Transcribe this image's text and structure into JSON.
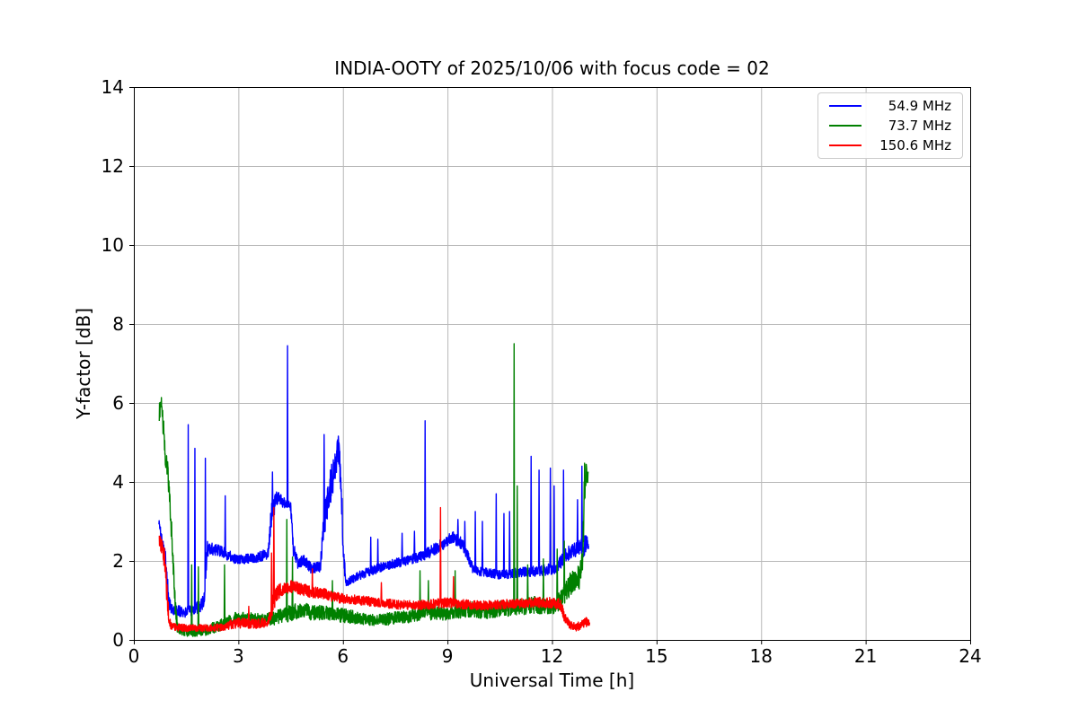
{
  "chart_data": {
    "type": "line",
    "title": "INDIA-OOTY of 2025/10/06 with focus code = 02",
    "xlabel": "Universal Time [h]",
    "ylabel": "Y-factor [dB]",
    "xlim": [
      0,
      24
    ],
    "ylim": [
      0,
      14
    ],
    "xticks": [
      "0",
      "3",
      "6",
      "9",
      "12",
      "15",
      "18",
      "21",
      "24"
    ],
    "yticks": [
      "0",
      "2",
      "4",
      "6",
      "8",
      "10",
      "12",
      "14"
    ],
    "grid": true,
    "grid_color": "#b8b8b8",
    "axis_color": "#000000",
    "legend_position": "upper right",
    "sample_step_h": 0.006,
    "series": [
      {
        "name": "54.9 MHz",
        "color": "#0000ff",
        "keypoints": [
          [
            0.72,
            3.0,
            0.1
          ],
          [
            0.78,
            2.62,
            0.15
          ],
          [
            0.86,
            2.35,
            0.15
          ],
          [
            0.93,
            1.9,
            0.25
          ],
          [
            1.0,
            0.95,
            0.2
          ],
          [
            1.08,
            0.78,
            0.15
          ],
          [
            1.3,
            0.72,
            0.15
          ],
          [
            1.5,
            0.7,
            0.14
          ],
          [
            1.7,
            0.78,
            0.15
          ],
          [
            1.9,
            0.85,
            0.16
          ],
          [
            2.02,
            1.0,
            0.2
          ],
          [
            2.1,
            2.3,
            0.25
          ],
          [
            2.3,
            2.3,
            0.15
          ],
          [
            2.6,
            2.2,
            0.15
          ],
          [
            2.9,
            2.05,
            0.12
          ],
          [
            3.2,
            2.05,
            0.12
          ],
          [
            3.6,
            2.1,
            0.13
          ],
          [
            3.85,
            2.2,
            0.15
          ],
          [
            3.95,
            3.2,
            0.35
          ],
          [
            4.1,
            3.6,
            0.18
          ],
          [
            4.3,
            3.5,
            0.15
          ],
          [
            4.5,
            3.35,
            0.13
          ],
          [
            4.58,
            2.3,
            0.2
          ],
          [
            4.7,
            1.95,
            0.15
          ],
          [
            4.9,
            2.0,
            0.15
          ],
          [
            5.1,
            1.8,
            0.13
          ],
          [
            5.35,
            1.85,
            0.15
          ],
          [
            5.45,
            2.9,
            0.4
          ],
          [
            5.6,
            3.7,
            0.45
          ],
          [
            5.75,
            4.3,
            0.5
          ],
          [
            5.87,
            4.9,
            0.4
          ],
          [
            5.95,
            3.9,
            0.45
          ],
          [
            6.02,
            2.0,
            0.3
          ],
          [
            6.1,
            1.45,
            0.1
          ],
          [
            6.4,
            1.6,
            0.11
          ],
          [
            6.8,
            1.75,
            0.12
          ],
          [
            7.3,
            1.9,
            0.12
          ],
          [
            7.8,
            2.0,
            0.12
          ],
          [
            8.2,
            2.1,
            0.13
          ],
          [
            8.55,
            2.25,
            0.15
          ],
          [
            8.9,
            2.45,
            0.15
          ],
          [
            9.15,
            2.6,
            0.15
          ],
          [
            9.4,
            2.45,
            0.15
          ],
          [
            9.6,
            2.1,
            0.15
          ],
          [
            9.75,
            1.75,
            0.12
          ],
          [
            10.1,
            1.7,
            0.12
          ],
          [
            10.6,
            1.65,
            0.12
          ],
          [
            11.1,
            1.7,
            0.13
          ],
          [
            11.6,
            1.75,
            0.14
          ],
          [
            12.1,
            1.8,
            0.15
          ],
          [
            12.45,
            2.2,
            0.2
          ],
          [
            12.7,
            2.3,
            0.2
          ],
          [
            12.9,
            2.35,
            0.25
          ],
          [
            13.0,
            2.5,
            0.25
          ],
          [
            13.05,
            2.4,
            0.15
          ]
        ],
        "spikes": [
          [
            1.56,
            5.45
          ],
          [
            1.75,
            4.85
          ],
          [
            2.05,
            4.6
          ],
          [
            2.62,
            3.65
          ],
          [
            3.98,
            4.25
          ],
          [
            4.41,
            7.45
          ],
          [
            5.46,
            5.2
          ],
          [
            6.8,
            2.6
          ],
          [
            7.0,
            2.55
          ],
          [
            7.7,
            2.7
          ],
          [
            8.05,
            2.75
          ],
          [
            8.36,
            5.55
          ],
          [
            9.3,
            3.05
          ],
          [
            9.5,
            3.0
          ],
          [
            9.8,
            3.25
          ],
          [
            10.0,
            3.0
          ],
          [
            10.4,
            3.7
          ],
          [
            10.62,
            3.2
          ],
          [
            10.78,
            3.25
          ],
          [
            11.4,
            4.65
          ],
          [
            11.63,
            4.3
          ],
          [
            11.95,
            4.35
          ],
          [
            12.06,
            3.9
          ],
          [
            12.33,
            4.3
          ],
          [
            12.73,
            3.55
          ],
          [
            12.86,
            4.4
          ]
        ]
      },
      {
        "name": "73.7 MHz",
        "color": "#008000",
        "keypoints": [
          [
            0.73,
            5.8,
            0.3
          ],
          [
            0.78,
            6.05,
            0.18
          ],
          [
            0.84,
            5.5,
            0.3
          ],
          [
            0.9,
            4.7,
            0.3
          ],
          [
            0.97,
            4.35,
            0.25
          ],
          [
            1.03,
            3.5,
            0.35
          ],
          [
            1.1,
            2.4,
            0.35
          ],
          [
            1.17,
            1.0,
            0.35
          ],
          [
            1.25,
            0.3,
            0.15
          ],
          [
            1.5,
            0.22,
            0.13
          ],
          [
            1.8,
            0.2,
            0.12
          ],
          [
            2.1,
            0.25,
            0.13
          ],
          [
            2.5,
            0.38,
            0.15
          ],
          [
            2.9,
            0.55,
            0.15
          ],
          [
            3.3,
            0.55,
            0.15
          ],
          [
            3.7,
            0.5,
            0.15
          ],
          [
            4.0,
            0.55,
            0.18
          ],
          [
            4.4,
            0.65,
            0.2
          ],
          [
            4.75,
            0.75,
            0.2
          ],
          [
            5.1,
            0.7,
            0.2
          ],
          [
            5.5,
            0.68,
            0.18
          ],
          [
            6.0,
            0.62,
            0.18
          ],
          [
            6.5,
            0.55,
            0.16
          ],
          [
            7.0,
            0.5,
            0.15
          ],
          [
            7.5,
            0.55,
            0.16
          ],
          [
            8.0,
            0.62,
            0.18
          ],
          [
            8.4,
            0.72,
            0.2
          ],
          [
            8.8,
            0.65,
            0.18
          ],
          [
            9.2,
            0.7,
            0.18
          ],
          [
            9.6,
            0.78,
            0.2
          ],
          [
            10.0,
            0.72,
            0.2
          ],
          [
            10.5,
            0.78,
            0.2
          ],
          [
            11.0,
            0.82,
            0.2
          ],
          [
            11.5,
            0.88,
            0.22
          ],
          [
            12.0,
            0.82,
            0.2
          ],
          [
            12.3,
            1.05,
            0.25
          ],
          [
            12.55,
            1.45,
            0.3
          ],
          [
            12.8,
            1.6,
            0.3
          ],
          [
            12.88,
            2.0,
            0.4
          ],
          [
            12.93,
            3.9,
            0.6
          ],
          [
            12.99,
            4.3,
            0.22
          ],
          [
            13.04,
            3.4,
            0.85
          ]
        ],
        "spikes": [
          [
            1.66,
            1.9
          ],
          [
            1.85,
            1.85
          ],
          [
            2.6,
            1.9
          ],
          [
            4.39,
            3.05
          ],
          [
            4.55,
            2.1
          ],
          [
            5.7,
            1.5
          ],
          [
            8.21,
            1.75
          ],
          [
            8.45,
            1.5
          ],
          [
            9.22,
            1.75
          ],
          [
            10.91,
            7.5
          ],
          [
            11.0,
            3.9
          ],
          [
            11.3,
            1.9
          ],
          [
            11.75,
            2.05
          ],
          [
            12.15,
            2.3
          ],
          [
            12.35,
            2.5
          ]
        ]
      },
      {
        "name": "150.6 MHz",
        "color": "#ff0000",
        "keypoints": [
          [
            0.73,
            2.5,
            0.15
          ],
          [
            0.8,
            2.35,
            0.2
          ],
          [
            0.88,
            2.1,
            0.3
          ],
          [
            0.95,
            1.2,
            0.35
          ],
          [
            1.02,
            0.45,
            0.15
          ],
          [
            1.1,
            0.33,
            0.1
          ],
          [
            1.5,
            0.3,
            0.09
          ],
          [
            2.0,
            0.3,
            0.09
          ],
          [
            2.5,
            0.33,
            0.1
          ],
          [
            3.0,
            0.43,
            0.13
          ],
          [
            3.5,
            0.4,
            0.12
          ],
          [
            3.85,
            0.45,
            0.13
          ],
          [
            3.97,
            0.9,
            0.3
          ],
          [
            4.1,
            1.2,
            0.2
          ],
          [
            4.3,
            1.3,
            0.16
          ],
          [
            4.55,
            1.35,
            0.16
          ],
          [
            4.8,
            1.28,
            0.15
          ],
          [
            5.1,
            1.22,
            0.15
          ],
          [
            5.4,
            1.18,
            0.14
          ],
          [
            5.7,
            1.1,
            0.13
          ],
          [
            6.0,
            1.05,
            0.13
          ],
          [
            6.5,
            1.0,
            0.12
          ],
          [
            7.0,
            0.95,
            0.12
          ],
          [
            7.5,
            0.9,
            0.12
          ],
          [
            8.0,
            0.87,
            0.12
          ],
          [
            8.5,
            0.9,
            0.12
          ],
          [
            9.0,
            0.95,
            0.13
          ],
          [
            9.5,
            0.9,
            0.12
          ],
          [
            10.0,
            0.87,
            0.12
          ],
          [
            10.5,
            0.9,
            0.12
          ],
          [
            11.0,
            0.92,
            0.12
          ],
          [
            11.5,
            0.95,
            0.13
          ],
          [
            12.0,
            0.95,
            0.14
          ],
          [
            12.25,
            0.9,
            0.15
          ],
          [
            12.35,
            0.6,
            0.13
          ],
          [
            12.5,
            0.38,
            0.1
          ],
          [
            12.7,
            0.32,
            0.1
          ],
          [
            12.9,
            0.42,
            0.13
          ],
          [
            13.0,
            0.48,
            0.15
          ],
          [
            13.08,
            0.35,
            0.1
          ]
        ],
        "spikes": [
          [
            3.3,
            0.85
          ],
          [
            3.95,
            2.2
          ],
          [
            4.02,
            3.35
          ],
          [
            5.12,
            1.8
          ],
          [
            7.1,
            1.45
          ],
          [
            8.8,
            3.35
          ],
          [
            9.17,
            1.6
          ]
        ]
      }
    ]
  }
}
